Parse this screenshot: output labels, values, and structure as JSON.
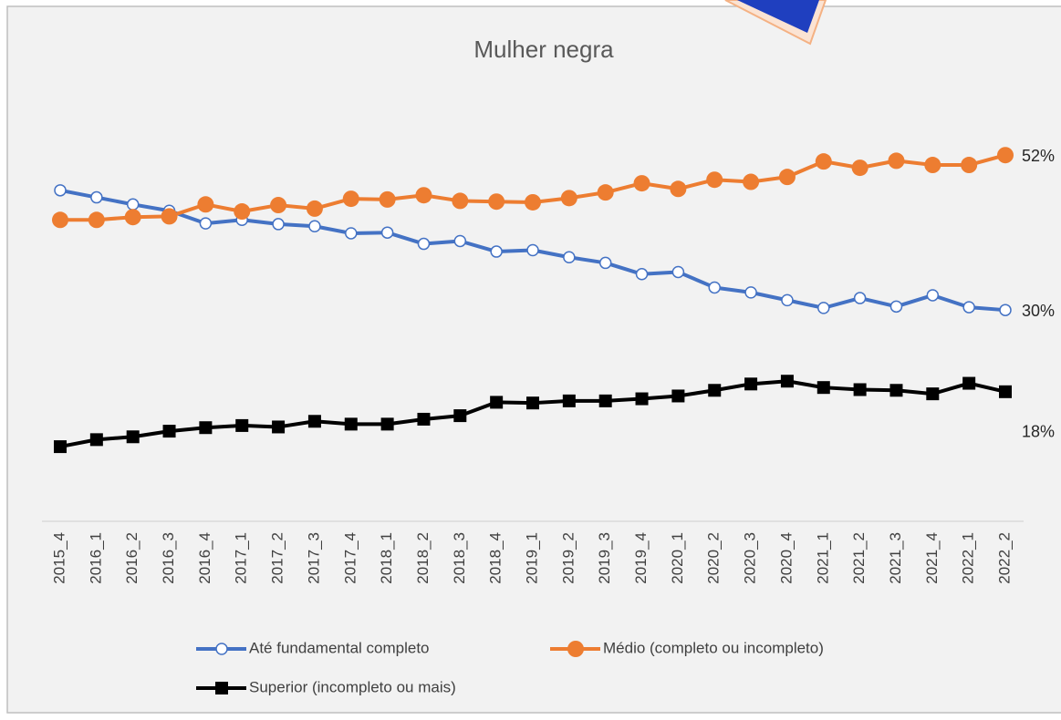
{
  "chart_data": {
    "type": "line",
    "title": "Mulher negra",
    "categories": [
      "2015_4",
      "2016_1",
      "2016_2",
      "2016_3",
      "2016_4",
      "2017_1",
      "2017_2",
      "2017_3",
      "2017_4",
      "2018_1",
      "2018_2",
      "2018_3",
      "2018_4",
      "2019_1",
      "2019_2",
      "2019_3",
      "2019_4",
      "2020_1",
      "2020_2",
      "2020_3",
      "2020_4",
      "2021_1",
      "2021_2",
      "2021_3",
      "2021_4",
      "2022_1",
      "2022_2"
    ],
    "series": [
      {
        "name": "Até fundamental completo",
        "color": "#4472c4",
        "marker": "open-circle",
        "values": [
          47.0,
          46.0,
          45.0,
          44.1,
          42.3,
          42.8,
          42.2,
          41.9,
          40.9,
          41.0,
          39.4,
          39.8,
          38.3,
          38.5,
          37.5,
          36.7,
          35.1,
          35.4,
          33.2,
          32.5,
          31.4,
          30.3,
          31.7,
          30.5,
          32.1,
          30.4,
          30.0
        ],
        "value_labels": [
          null,
          null,
          null,
          null,
          null,
          null,
          null,
          null,
          null,
          null,
          null,
          null,
          null,
          null,
          null,
          null,
          null,
          null,
          null,
          null,
          null,
          null,
          null,
          null,
          null,
          null,
          "30%"
        ]
      },
      {
        "name": "Médio (completo ou incompleto)",
        "color": "#ed7d31",
        "marker": "circle",
        "values": [
          42.8,
          42.8,
          43.2,
          43.3,
          45.0,
          44.0,
          44.9,
          44.4,
          45.8,
          45.7,
          46.3,
          45.5,
          45.4,
          45.3,
          45.9,
          46.7,
          48.0,
          47.2,
          48.5,
          48.2,
          48.9,
          51.1,
          50.2,
          51.2,
          50.6,
          50.6,
          52.0
        ],
        "value_labels": [
          null,
          null,
          null,
          null,
          null,
          null,
          null,
          null,
          null,
          null,
          null,
          null,
          null,
          null,
          null,
          null,
          null,
          null,
          null,
          null,
          null,
          null,
          null,
          null,
          null,
          null,
          "52%"
        ]
      },
      {
        "name": "Superior (incompleto ou mais)",
        "color": "#000000",
        "marker": "square",
        "values": [
          10.6,
          11.6,
          12.0,
          12.8,
          13.3,
          13.6,
          13.4,
          14.2,
          13.8,
          13.8,
          14.5,
          15.0,
          16.9,
          16.8,
          17.1,
          17.1,
          17.4,
          17.8,
          18.6,
          19.5,
          19.9,
          19.0,
          18.7,
          18.6,
          18.1,
          19.6,
          18.4
        ],
        "value_labels": [
          null,
          null,
          null,
          null,
          null,
          null,
          null,
          null,
          null,
          null,
          null,
          null,
          null,
          null,
          null,
          null,
          null,
          null,
          null,
          null,
          null,
          null,
          null,
          null,
          null,
          null,
          "18%"
        ]
      }
    ]
  }
}
